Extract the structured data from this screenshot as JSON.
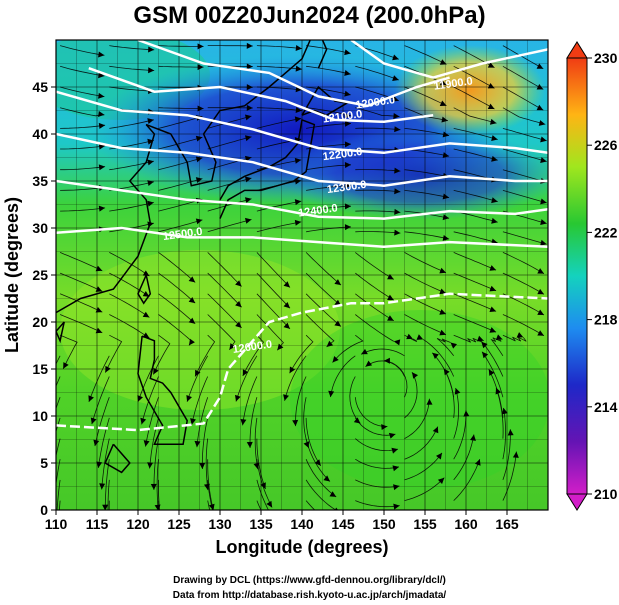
{
  "title": "GSM 00Z20Jun2024 (200.0hPa)",
  "x_axis": {
    "label": "Longitude (degrees)",
    "range": [
      110,
      170
    ],
    "ticks": [
      "110",
      "115",
      "120",
      "125",
      "130",
      "135",
      "140",
      "145",
      "150",
      "155",
      "160",
      "165"
    ]
  },
  "y_axis": {
    "label": "Latitude  (degrees)",
    "range": [
      0,
      50
    ],
    "ticks": [
      "0",
      "5",
      "10",
      "15",
      "20",
      "25",
      "30",
      "35",
      "40",
      "45"
    ]
  },
  "colorbar": {
    "range": [
      210,
      230
    ],
    "ticks": [
      "210",
      "214",
      "218",
      "222",
      "226",
      "230"
    ],
    "colors": [
      "#c800c8",
      "#1e1eb4",
      "#1e90ff",
      "#20d0b0",
      "#28c828",
      "#96e61e",
      "#ffd200",
      "#ff5a14"
    ]
  },
  "contours": [
    {
      "label": "11900.0",
      "lon": 158.5,
      "lat": 45
    },
    {
      "label": "12000.0",
      "lon": 149,
      "lat": 43
    },
    {
      "label": "12100.0",
      "lon": 145,
      "lat": 41.5
    },
    {
      "label": "12200.0",
      "lon": 145,
      "lat": 37.5
    },
    {
      "label": "12300.0",
      "lon": 145.5,
      "lat": 34
    },
    {
      "label": "12400.0",
      "lon": 142,
      "lat": 31.5
    },
    {
      "label": "12500.0",
      "lon": 125.5,
      "lat": 29
    },
    {
      "label": "12600.0",
      "lon": 134,
      "lat": 17
    }
  ],
  "credits": {
    "line1": "Drawing by DCL (https://www.gfd-dennou.org/library/dcl/)",
    "line2": "Data from http://database.rish.kyoto-u.ac.jp/arch/jmadata/"
  }
}
